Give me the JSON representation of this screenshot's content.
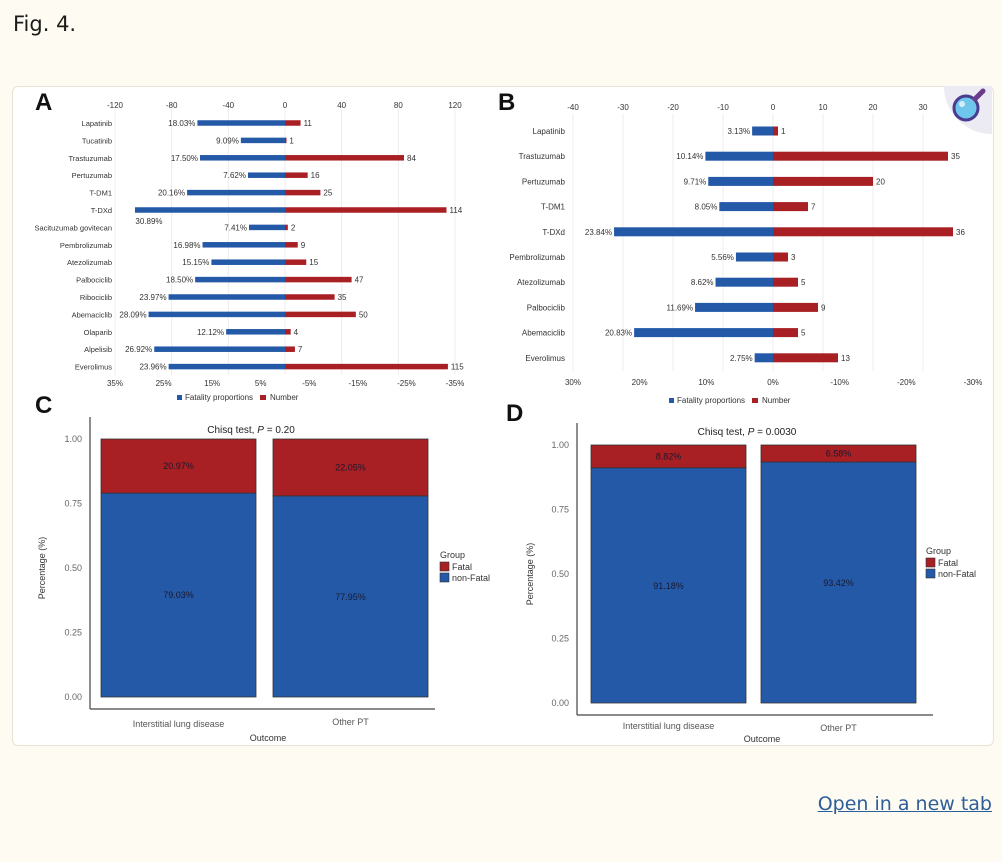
{
  "page": {
    "figure_label": "Fig. 4.",
    "open_link": "Open in a new tab",
    "zoom_icon": "magnifier-icon"
  },
  "colors": {
    "blue": "#2459a8",
    "red": "#a81f24",
    "grid": "#ececec",
    "text": "#333333",
    "axis": "#555555"
  },
  "chart_data": [
    {
      "panel": "A",
      "type": "bar",
      "orientation": "diverging-horizontal",
      "categories": [
        "Lapatinib",
        "Tucatinib",
        "Trastuzumab",
        "Pertuzumab",
        "T-DM1",
        "T-DXd",
        "Sacituzumab govitecan",
        "Pembrolizumab",
        "Atezolizumab",
        "Palbociclib",
        "Ribociclib",
        "Abemaciclib",
        "Olaparib",
        "Alpelisib",
        "Everolimus"
      ],
      "series": [
        {
          "name": "Fatality proportions",
          "color": "blue",
          "values": [
            18.03,
            9.09,
            17.5,
            7.62,
            20.16,
            30.89,
            7.41,
            16.98,
            15.15,
            18.5,
            23.97,
            28.09,
            12.12,
            26.92,
            23.96
          ],
          "labels": [
            "18.03%",
            "9.09%",
            "17.50%",
            "7.62%",
            "20.16%",
            "30.89%",
            "7.41%",
            "16.98%",
            "15.15%",
            "18.50%",
            "23.97%",
            "28.09%",
            "12.12%",
            "26.92%",
            "23.96%"
          ]
        },
        {
          "name": "Number",
          "color": "red",
          "values": [
            11,
            1,
            84,
            16,
            25,
            114,
            2,
            9,
            15,
            47,
            35,
            50,
            4,
            7,
            115
          ]
        }
      ],
      "top_axis": {
        "ticks": [
          "-120",
          "-80",
          "-40",
          "0",
          "40",
          "80",
          "120"
        ],
        "range": [
          -120,
          120
        ]
      },
      "bottom_axis": {
        "ticks": [
          "35%",
          "25%",
          "15%",
          "5%",
          "-5%",
          "-15%",
          "-25%",
          "-35%"
        ],
        "range_pct": [
          35,
          -35
        ]
      },
      "legend": [
        "Fatality proportions",
        "Number"
      ],
      "legend_position": "bottom"
    },
    {
      "panel": "B",
      "type": "bar",
      "orientation": "diverging-horizontal",
      "categories": [
        "Lapatinib",
        "Trastuzumab",
        "Pertuzumab",
        "T-DM1",
        "T-DXd",
        "Pembrolizumab",
        "Atezolizumab",
        "Palbociclib",
        "Abemaciclib",
        "Everolimus"
      ],
      "series": [
        {
          "name": "Fatality proportions",
          "color": "blue",
          "values": [
            3.13,
            10.14,
            9.71,
            8.05,
            23.84,
            5.56,
            8.62,
            11.69,
            20.83,
            2.75
          ],
          "labels": [
            "3.13%",
            "10.14%",
            "9.71%",
            "8.05%",
            "23.84%",
            "5.56%",
            "8.62%",
            "11.69%",
            "20.83%",
            "2.75%"
          ]
        },
        {
          "name": "Number",
          "color": "red",
          "values": [
            1,
            35,
            20,
            7,
            36,
            3,
            5,
            9,
            5,
            13
          ]
        }
      ],
      "top_axis": {
        "ticks": [
          "-40",
          "-30",
          "-20",
          "-10",
          "0",
          "10",
          "20",
          "30"
        ],
        "range": [
          -40,
          40
        ]
      },
      "bottom_axis": {
        "ticks": [
          "30%",
          "20%",
          "10%",
          "0%",
          "-10%",
          "-20%",
          "-30%"
        ],
        "range_pct": [
          30,
          -30
        ]
      },
      "legend": [
        "Fatality proportions",
        "Number"
      ],
      "legend_position": "bottom"
    },
    {
      "panel": "C",
      "type": "bar",
      "stacked": true,
      "title": "Chisq test, P = 0.20",
      "title_prefix": "Chisq test, ",
      "title_p": "P",
      "title_suffix": " = 0.20",
      "categories": [
        "Interstitial lung disease",
        "Other PT"
      ],
      "series": [
        {
          "name": "non-Fatal",
          "color": "blue",
          "values": [
            0.7903,
            0.7795
          ],
          "labels": [
            "79.03%",
            "77.95%"
          ]
        },
        {
          "name": "Fatal",
          "color": "red",
          "values": [
            0.2097,
            0.2205
          ],
          "labels": [
            "20.97%",
            "22.05%"
          ]
        }
      ],
      "xlabel": "Outcome",
      "ylabel": "Percentage (%)",
      "yticks": [
        "0.00",
        "0.25",
        "0.50",
        "0.75",
        "1.00"
      ],
      "ylim": [
        0,
        1
      ],
      "legend_title": "Group",
      "legend": [
        "Fatal",
        "non-Fatal"
      ],
      "legend_position": "right"
    },
    {
      "panel": "D",
      "type": "bar",
      "stacked": true,
      "title": "Chisq test, P = 0.0030",
      "title_prefix": "Chisq test, ",
      "title_p": "P",
      "title_suffix": " = 0.0030",
      "categories": [
        "Interstitial lung disease",
        "Other PT"
      ],
      "series": [
        {
          "name": "non-Fatal",
          "color": "blue",
          "values": [
            0.9118,
            0.9342
          ],
          "labels": [
            "91.18%",
            "93.42%"
          ]
        },
        {
          "name": "Fatal",
          "color": "red",
          "values": [
            0.0882,
            0.0658
          ],
          "labels": [
            "8.82%",
            "6.58%"
          ]
        }
      ],
      "xlabel": "Outcome",
      "ylabel": "Percentage (%)",
      "yticks": [
        "0.00",
        "0.25",
        "0.50",
        "0.75",
        "1.00"
      ],
      "ylim": [
        0,
        1
      ],
      "legend_title": "Group",
      "legend": [
        "Fatal",
        "non-Fatal"
      ],
      "legend_position": "right"
    }
  ]
}
